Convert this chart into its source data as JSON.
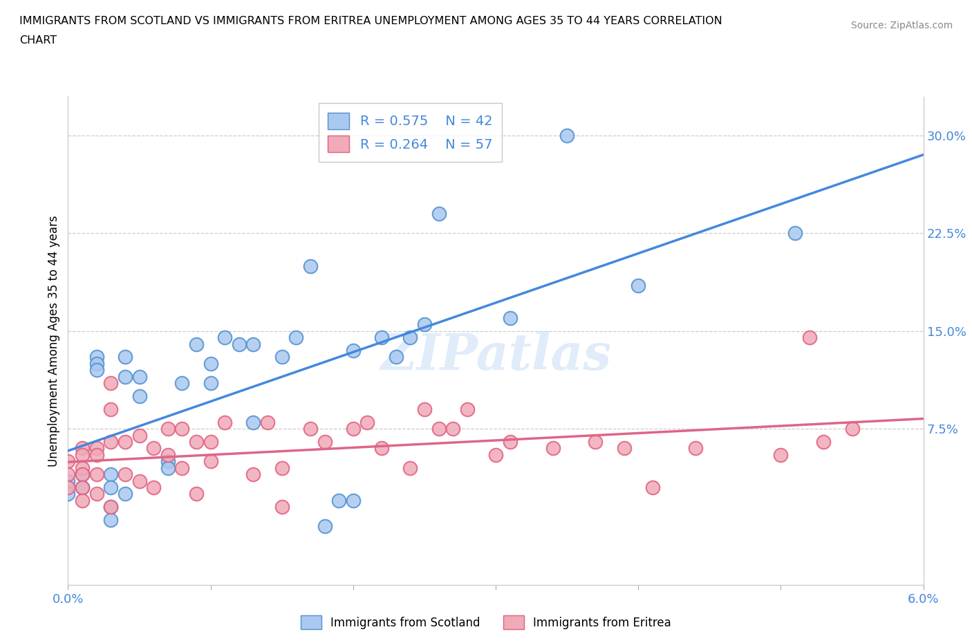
{
  "title_line1": "IMMIGRANTS FROM SCOTLAND VS IMMIGRANTS FROM ERITREA UNEMPLOYMENT AMONG AGES 35 TO 44 YEARS CORRELATION",
  "title_line2": "CHART",
  "source": "Source: ZipAtlas.com",
  "ylabel": "Unemployment Among Ages 35 to 44 years",
  "right_yticks": [
    0.075,
    0.15,
    0.225,
    0.3
  ],
  "right_yticklabels": [
    "7.5%",
    "15.0%",
    "22.5%",
    "30.0%"
  ],
  "watermark_text": "ZIPatlas",
  "scotland_color": "#aac8f0",
  "eritrea_color": "#f0aab8",
  "scotland_edge_color": "#5090d0",
  "eritrea_edge_color": "#e06080",
  "scotland_line_color": "#4488dd",
  "eritrea_line_color": "#dd6688",
  "legend_scotland": "Immigrants from Scotland",
  "legend_eritrea": "Immigrants from Eritrea",
  "R_scotland": 0.575,
  "N_scotland": 42,
  "R_eritrea": 0.264,
  "N_eritrea": 57,
  "scotland_x": [
    0.0,
    0.0,
    0.001,
    0.001,
    0.002,
    0.002,
    0.002,
    0.003,
    0.003,
    0.003,
    0.003,
    0.004,
    0.004,
    0.004,
    0.005,
    0.005,
    0.007,
    0.007,
    0.008,
    0.009,
    0.01,
    0.01,
    0.011,
    0.012,
    0.013,
    0.013,
    0.015,
    0.016,
    0.017,
    0.018,
    0.019,
    0.02,
    0.02,
    0.022,
    0.023,
    0.024,
    0.025,
    0.026,
    0.031,
    0.035,
    0.04,
    0.051
  ],
  "scotland_y": [
    0.035,
    0.025,
    0.04,
    0.03,
    0.13,
    0.125,
    0.12,
    0.04,
    0.03,
    0.015,
    0.005,
    0.13,
    0.115,
    0.025,
    0.115,
    0.1,
    0.05,
    0.045,
    0.11,
    0.14,
    0.125,
    0.11,
    0.145,
    0.14,
    0.08,
    0.14,
    0.13,
    0.145,
    0.2,
    0.0,
    0.02,
    0.02,
    0.135,
    0.145,
    0.13,
    0.145,
    0.155,
    0.24,
    0.16,
    0.3,
    0.185,
    0.225
  ],
  "eritrea_x": [
    0.0,
    0.0,
    0.0,
    0.001,
    0.001,
    0.001,
    0.001,
    0.001,
    0.001,
    0.002,
    0.002,
    0.002,
    0.002,
    0.003,
    0.003,
    0.003,
    0.003,
    0.004,
    0.004,
    0.005,
    0.005,
    0.006,
    0.006,
    0.007,
    0.007,
    0.008,
    0.008,
    0.009,
    0.009,
    0.01,
    0.01,
    0.011,
    0.013,
    0.014,
    0.015,
    0.015,
    0.017,
    0.018,
    0.02,
    0.021,
    0.022,
    0.024,
    0.025,
    0.026,
    0.027,
    0.028,
    0.03,
    0.031,
    0.034,
    0.037,
    0.039,
    0.041,
    0.044,
    0.05,
    0.052,
    0.053,
    0.055
  ],
  "eritrea_y": [
    0.05,
    0.04,
    0.03,
    0.06,
    0.055,
    0.045,
    0.04,
    0.03,
    0.02,
    0.06,
    0.055,
    0.04,
    0.025,
    0.11,
    0.09,
    0.065,
    0.015,
    0.065,
    0.04,
    0.07,
    0.035,
    0.06,
    0.03,
    0.075,
    0.055,
    0.075,
    0.045,
    0.065,
    0.025,
    0.065,
    0.05,
    0.08,
    0.04,
    0.08,
    0.045,
    0.015,
    0.075,
    0.065,
    0.075,
    0.08,
    0.06,
    0.045,
    0.09,
    0.075,
    0.075,
    0.09,
    0.055,
    0.065,
    0.06,
    0.065,
    0.06,
    0.03,
    0.06,
    0.055,
    0.145,
    0.065,
    0.075
  ],
  "xmin": 0.0,
  "xmax": 0.06,
  "ymin": -0.045,
  "ymax": 0.33,
  "xtick_positions": [
    0.0,
    0.01,
    0.02,
    0.03,
    0.04,
    0.05,
    0.06
  ],
  "xtick_labels": [
    "0.0%",
    "",
    "",
    "",
    "",
    "",
    "6.0%"
  ]
}
